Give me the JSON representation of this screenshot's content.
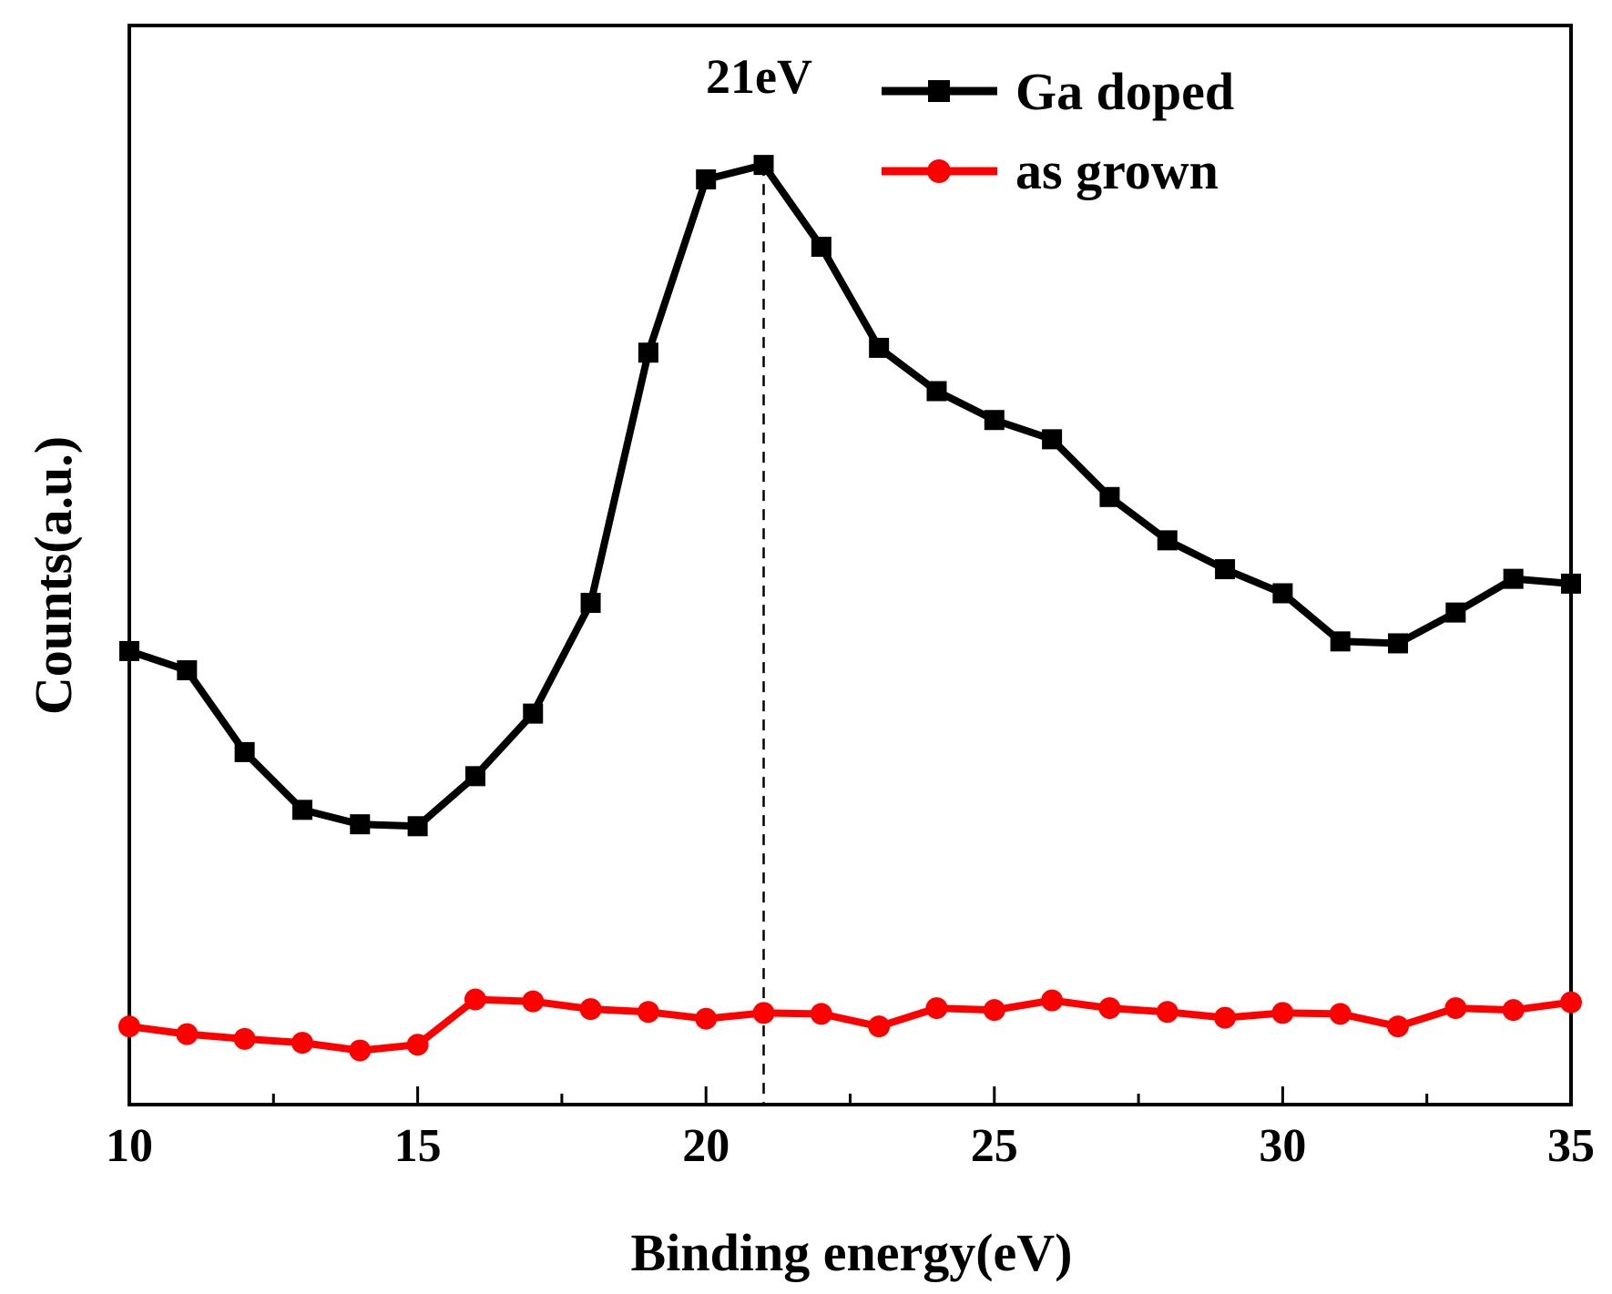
{
  "chart_data": {
    "type": "line",
    "title": "",
    "xlabel": "Binding energy(eV)",
    "ylabel": "Counts(a.u.)",
    "xlim": [
      10,
      35
    ],
    "ylim": [
      0,
      100
    ],
    "x_ticks": [
      10,
      15,
      20,
      25,
      30,
      35
    ],
    "y_ticks_shown": false,
    "grid": false,
    "legend_position": "top-right",
    "x": [
      10,
      11,
      12,
      13,
      14,
      15,
      16,
      17,
      18,
      19,
      20,
      21,
      22,
      23,
      24,
      25,
      26,
      27,
      28,
      29,
      30,
      31,
      32,
      33,
      34,
      35
    ],
    "series": [
      {
        "name": "Ga doped",
        "color": "#000000",
        "marker": "square",
        "values": [
          44,
          42,
          33.5,
          27.5,
          26,
          25.8,
          31,
          37.5,
          49,
          75,
          93,
          94.5,
          86,
          75.5,
          71,
          68,
          66,
          60,
          55.5,
          52.5,
          50,
          45,
          44.8,
          48,
          51.5,
          51
        ]
      },
      {
        "name": "as grown",
        "color": "#ff0000",
        "marker": "circle",
        "values": [
          5,
          4.2,
          3.7,
          3.3,
          2.5,
          3.1,
          7.8,
          7.6,
          6.8,
          6.5,
          5.8,
          6.4,
          6.3,
          5,
          6.9,
          6.7,
          7.7,
          6.9,
          6.5,
          5.9,
          6.4,
          6.3,
          5,
          6.9,
          6.7,
          7.5
        ]
      }
    ],
    "annotations": [
      {
        "text": "21eV",
        "x": 21,
        "style": "dashed-vertical-line"
      }
    ]
  }
}
